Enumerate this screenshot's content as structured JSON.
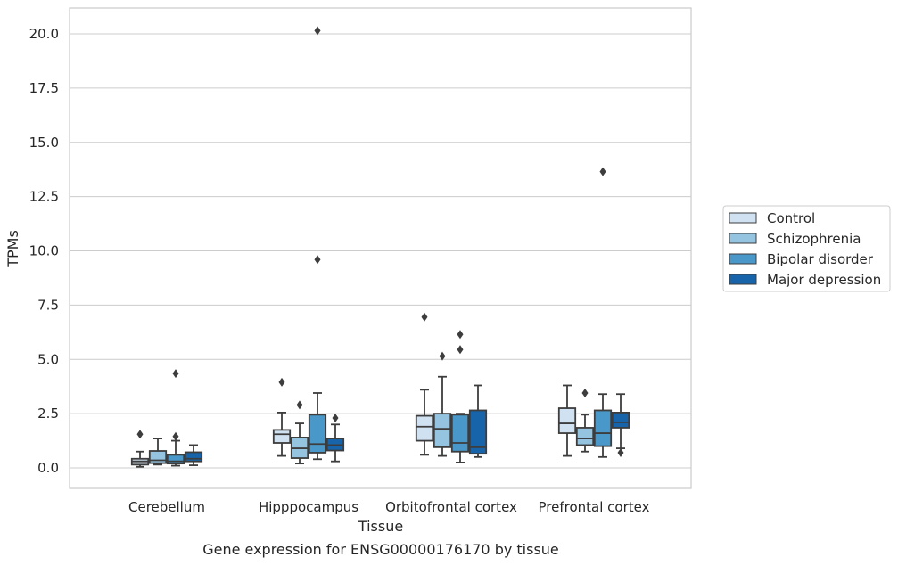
{
  "chart_data": {
    "type": "boxplot",
    "caption": "Gene expression for ENSG00000176170 by tissue",
    "xlabel": "Tissue",
    "ylabel": "TPMs",
    "ylim": [
      -0.9,
      21.2
    ],
    "yticks": [
      "0.0",
      "2.5",
      "5.0",
      "7.5",
      "10.0",
      "12.5",
      "15.0",
      "17.5",
      "20.0"
    ],
    "ytick_values": [
      0,
      2.5,
      5,
      7.5,
      10,
      12.5,
      15,
      17.5,
      20
    ],
    "grid": "horizontal",
    "legend_position": "right",
    "categories": [
      "Cerebellum",
      "Hipppocampus",
      "Orbitofrontal cortex",
      "Prefrontal cortex"
    ],
    "series": [
      {
        "name": "Control",
        "color": "#d0e1f2",
        "boxes": [
          {
            "whislo": 0.05,
            "q1": 0.15,
            "med": 0.3,
            "q3": 0.42,
            "whishi": 0.75,
            "fliers": [
              1.55
            ]
          },
          {
            "whislo": 0.55,
            "q1": 1.15,
            "med": 1.55,
            "q3": 1.75,
            "whishi": 2.55,
            "fliers": [
              3.95
            ]
          },
          {
            "whislo": 0.6,
            "q1": 1.25,
            "med": 1.9,
            "q3": 2.4,
            "whishi": 3.6,
            "fliers": [
              6.95
            ]
          },
          {
            "whislo": 0.55,
            "q1": 1.6,
            "med": 2.05,
            "q3": 2.75,
            "whishi": 3.8,
            "fliers": []
          }
        ]
      },
      {
        "name": "Schizophrenia",
        "color": "#94c4df",
        "boxes": [
          {
            "whislo": 0.15,
            "q1": 0.22,
            "med": 0.35,
            "q3": 0.78,
            "whishi": 1.35,
            "fliers": []
          },
          {
            "whislo": 0.2,
            "q1": 0.45,
            "med": 0.9,
            "q3": 1.4,
            "whishi": 2.05,
            "fliers": [
              2.9
            ]
          },
          {
            "whislo": 0.55,
            "q1": 0.95,
            "med": 1.8,
            "q3": 2.5,
            "whishi": 4.2,
            "fliers": [
              5.15
            ]
          },
          {
            "whislo": 0.75,
            "q1": 1.05,
            "med": 1.35,
            "q3": 1.85,
            "whishi": 2.45,
            "fliers": [
              3.45
            ]
          }
        ]
      },
      {
        "name": "Bipolar disorder",
        "color": "#4a98c9",
        "boxes": [
          {
            "whislo": 0.1,
            "q1": 0.2,
            "med": 0.3,
            "q3": 0.6,
            "whishi": 1.25,
            "fliers": [
              1.45,
              4.35
            ]
          },
          {
            "whislo": 0.4,
            "q1": 0.7,
            "med": 1.1,
            "q3": 2.45,
            "whishi": 3.45,
            "fliers": [
              9.6,
              20.15
            ]
          },
          {
            "whislo": 0.25,
            "q1": 0.75,
            "med": 1.15,
            "q3": 2.45,
            "whishi": 2.5,
            "fliers": [
              5.45,
              6.15
            ]
          },
          {
            "whislo": 0.5,
            "q1": 1.0,
            "med": 1.6,
            "q3": 2.65,
            "whishi": 3.4,
            "fliers": [
              13.65
            ]
          }
        ]
      },
      {
        "name": "Major depression",
        "color": "#1764ab",
        "boxes": [
          {
            "whislo": 0.12,
            "q1": 0.3,
            "med": 0.42,
            "q3": 0.72,
            "whishi": 1.05,
            "fliers": []
          },
          {
            "whislo": 0.3,
            "q1": 0.8,
            "med": 1.05,
            "q3": 1.35,
            "whishi": 2.0,
            "fliers": [
              2.3
            ]
          },
          {
            "whislo": 0.5,
            "q1": 0.65,
            "med": 0.95,
            "q3": 2.65,
            "whishi": 3.8,
            "fliers": []
          },
          {
            "whislo": 0.9,
            "q1": 1.85,
            "med": 2.1,
            "q3": 2.55,
            "whishi": 3.4,
            "fliers": [
              0.7
            ]
          }
        ]
      }
    ]
  }
}
